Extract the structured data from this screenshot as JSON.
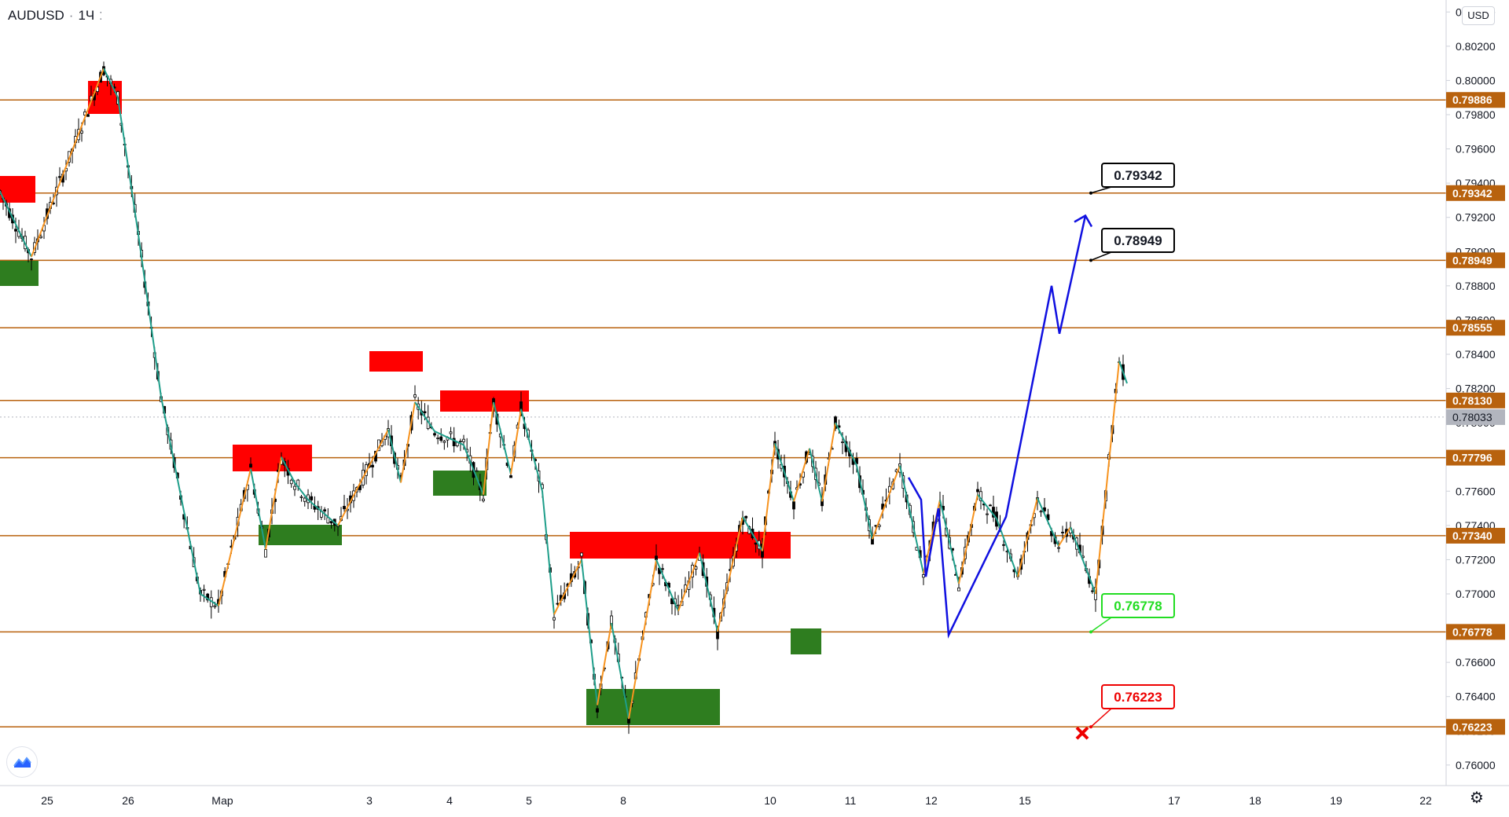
{
  "header": {
    "symbol": "AUDUSD",
    "timeframe": "1Ч",
    "currency": "USD"
  },
  "icons": {
    "logo": "tradingview-logo-icon",
    "settings": "gear-icon",
    "symbol_menu": "dots-icon"
  },
  "colors": {
    "level_line": "#b8620e",
    "level_badge": "#b8620e",
    "last_price_badge": "#b2b5be",
    "zigzag_up": "#f7931e",
    "zigzag_down": "#1e9e8a",
    "supply_zone": "#ff0000",
    "demand_zone": "#2e7d1f",
    "forecast_path": "#1010e0",
    "candle": "#000000",
    "target_label_border": "#000000",
    "support_label_color": "#22dd22",
    "stop_label_color": "#ee0000"
  },
  "chart_data": {
    "type": "candlestick",
    "symbol": "AUDUSD",
    "timeframe": "1Ч",
    "y_axis": {
      "range": [
        0.7588,
        0.8047
      ],
      "ticks": [
        "0.80400",
        "0.80200",
        "0.80000",
        "0.79800",
        "0.79600",
        "0.79400",
        "0.79200",
        "0.79000",
        "0.78800",
        "0.78600",
        "0.78400",
        "0.78200",
        "0.78000",
        "0.77800",
        "0.77600",
        "0.77400",
        "0.77200",
        "0.77000",
        "0.76800",
        "0.76600",
        "0.76400",
        "0.76200",
        "0.76000"
      ]
    },
    "x_axis": {
      "ticks": [
        "25",
        "26",
        "Мар",
        "3",
        "4",
        "5",
        "8",
        "10",
        "11",
        "12",
        "15",
        "17",
        "18",
        "19",
        "22"
      ]
    },
    "horizontal_levels": [
      {
        "value": 0.79886,
        "label": "0.79886"
      },
      {
        "value": 0.79342,
        "label": "0.79342"
      },
      {
        "value": 0.78949,
        "label": "0.78949"
      },
      {
        "value": 0.78555,
        "label": "0.78555"
      },
      {
        "value": 0.7813,
        "label": "0.78130"
      },
      {
        "value": 0.77796,
        "label": "0.77796"
      },
      {
        "value": 0.7734,
        "label": "0.77340"
      },
      {
        "value": 0.76778,
        "label": "0.76778"
      },
      {
        "value": 0.76223,
        "label": "0.76223"
      }
    ],
    "last_price": {
      "value": 0.78033,
      "label": "0.78033"
    },
    "annotations": [
      {
        "label": "0.79342",
        "role": "target"
      },
      {
        "label": "0.78949",
        "role": "target"
      },
      {
        "label": "0.76778",
        "role": "support"
      },
      {
        "label": "0.76223",
        "role": "stop"
      }
    ],
    "zigzag_path_prices": [
      0.7935,
      0.7897,
      0.8007,
      0.799,
      0.791,
      0.7815,
      0.77,
      0.7693,
      0.7773,
      0.7726,
      0.778,
      0.7765,
      0.7755,
      0.774,
      0.7796,
      0.7765,
      0.7812,
      0.7795,
      0.7787,
      0.7758,
      0.7812,
      0.777,
      0.7808,
      0.776,
      0.7688,
      0.772,
      0.7635,
      0.7683,
      0.7627,
      0.772,
      0.769,
      0.7724,
      0.7678,
      0.7745,
      0.7725,
      0.7788,
      0.7754,
      0.7785,
      0.7754,
      0.78,
      0.7775,
      0.7732,
      0.7775,
      0.7712,
      0.7755,
      0.7706,
      0.7758,
      0.7744,
      0.771,
      0.7756,
      0.7728,
      0.7739,
      0.77,
      0.7836,
      0.7823
    ],
    "forecast_path_prices": [
      0.7768,
      0.7755,
      0.771,
      0.775,
      0.7676,
      0.7745,
      0.788,
      0.7852,
      0.7921
    ]
  }
}
